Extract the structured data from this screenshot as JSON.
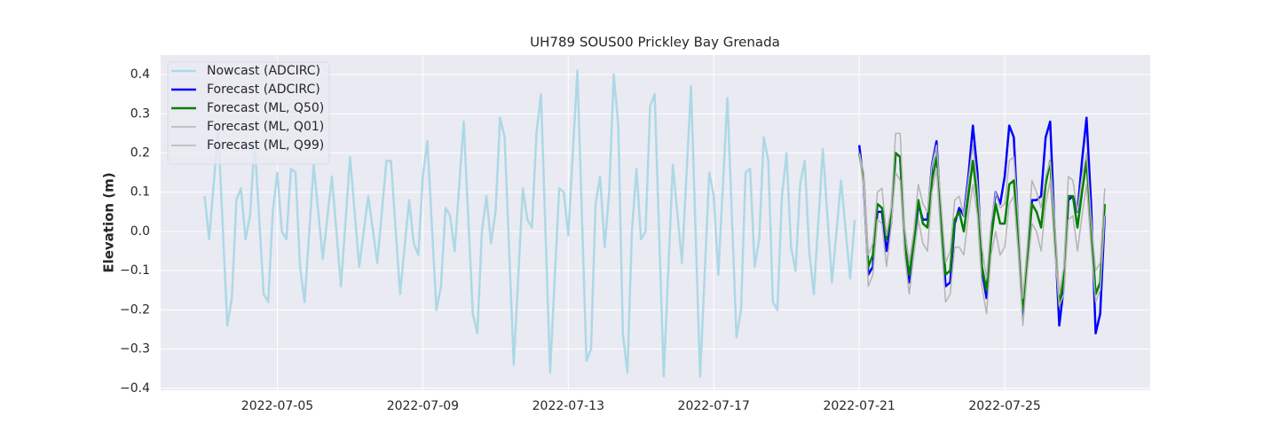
{
  "chart_data": {
    "type": "line",
    "title": "UH789 SOUS00 Prickley Bay Grenada",
    "ylabel": "Elevation (m)",
    "grid": true,
    "legend": "upper left",
    "xlim": [
      "2022-07-01 19:00",
      "2022-07-29 00:00"
    ],
    "xticks": [
      "2022-07-05",
      "2022-07-09",
      "2022-07-13",
      "2022-07-17",
      "2022-07-21",
      "2022-07-25"
    ],
    "ylim": [
      -0.405,
      0.45
    ],
    "yticks": [
      {
        "value": -0.4,
        "label": "−0.4"
      },
      {
        "value": -0.3,
        "label": "−0.3"
      },
      {
        "value": -0.2,
        "label": "−0.2"
      },
      {
        "value": -0.1,
        "label": "−0.1"
      },
      {
        "value": 0,
        "label": "0.0"
      },
      0.1,
      0.2,
      0.3,
      0.4
    ],
    "series": [
      {
        "name": "Nowcast (ADCIRC)",
        "color": "#add8e6",
        "width": 2.5,
        "x": [
          "2022-07-03 00:00",
          "2022-07-03 03:00",
          "2022-07-03 09:00",
          "2022-07-03 15:00",
          "2022-07-03 18:00",
          "2022-07-03 21:00",
          "2022-07-04 00:00",
          "2022-07-04 03:00",
          "2022-07-04 06:00",
          "2022-07-04 09:00",
          "2022-07-04 15:00",
          "2022-07-04 18:00",
          "2022-07-04 21:00",
          "2022-07-05 00:00",
          "2022-07-05 03:00",
          "2022-07-05 06:00",
          "2022-07-05 09:00",
          "2022-07-05 12:00",
          "2022-07-05 15:00",
          "2022-07-05 18:00",
          "2022-07-06 00:00",
          "2022-07-06 06:00",
          "2022-07-06 12:00",
          "2022-07-06 18:00",
          "2022-07-07 00:00",
          "2022-07-07 06:00",
          "2022-07-07 12:00",
          "2022-07-07 18:00",
          "2022-07-08 00:00",
          "2022-07-08 03:00",
          "2022-07-08 09:00",
          "2022-07-08 15:00",
          "2022-07-08 18:00",
          "2022-07-08 21:00",
          "2022-07-09 00:00",
          "2022-07-09 03:00",
          "2022-07-09 09:00",
          "2022-07-09 12:00",
          "2022-07-09 15:00",
          "2022-07-09 18:00",
          "2022-07-09 21:00",
          "2022-07-10 03:00",
          "2022-07-10 09:00",
          "2022-07-10 12:00",
          "2022-07-10 15:00",
          "2022-07-10 18:00",
          "2022-07-10 21:00",
          "2022-07-11 00:00",
          "2022-07-11 03:00",
          "2022-07-11 06:00",
          "2022-07-11 12:00",
          "2022-07-11 18:00",
          "2022-07-11 21:00",
          "2022-07-12 00:00",
          "2022-07-12 03:00",
          "2022-07-12 06:00",
          "2022-07-12 12:00",
          "2022-07-12 18:00",
          "2022-07-12 21:00",
          "2022-07-13 00:00",
          "2022-07-13 06:00",
          "2022-07-13 12:00",
          "2022-07-13 15:00",
          "2022-07-13 18:00",
          "2022-07-13 21:00",
          "2022-07-14 00:00",
          "2022-07-14 03:00",
          "2022-07-14 06:00",
          "2022-07-14 09:00",
          "2022-07-14 12:00",
          "2022-07-14 15:00",
          "2022-07-14 18:00",
          "2022-07-14 21:00",
          "2022-07-15 00:00",
          "2022-07-15 03:00",
          "2022-07-15 06:00",
          "2022-07-15 09:00",
          "2022-07-15 15:00",
          "2022-07-15 21:00",
          "2022-07-16 03:00",
          "2022-07-16 09:00",
          "2022-07-16 15:00",
          "2022-07-16 21:00",
          "2022-07-17 00:00",
          "2022-07-17 03:00",
          "2022-07-17 09:00",
          "2022-07-17 15:00",
          "2022-07-17 18:00",
          "2022-07-17 21:00",
          "2022-07-18 00:00",
          "2022-07-18 03:00",
          "2022-07-18 06:00",
          "2022-07-18 09:00",
          "2022-07-18 12:00",
          "2022-07-18 15:00",
          "2022-07-18 18:00",
          "2022-07-18 21:00",
          "2022-07-19 00:00",
          "2022-07-19 03:00",
          "2022-07-19 06:00",
          "2022-07-19 09:00",
          "2022-07-19 12:00",
          "2022-07-19 15:00",
          "2022-07-19 18:00",
          "2022-07-20 00:00",
          "2022-07-20 06:00",
          "2022-07-20 12:00",
          "2022-07-20 18:00",
          "2022-07-20 21:00"
        ],
        "values": [
          0.09,
          -0.02,
          0.26,
          -0.24,
          -0.17,
          0.08,
          0.11,
          -0.02,
          0.04,
          0.23,
          -0.16,
          -0.18,
          0.05,
          0.15,
          0.0,
          -0.02,
          0.16,
          0.15,
          -0.09,
          -0.18,
          0.17,
          -0.07,
          0.14,
          -0.14,
          0.19,
          -0.09,
          0.09,
          -0.08,
          0.18,
          0.18,
          -0.16,
          0.08,
          -0.03,
          -0.06,
          0.14,
          0.23,
          -0.2,
          -0.14,
          0.06,
          0.04,
          -0.05,
          0.28,
          -0.21,
          -0.26,
          0.0,
          0.09,
          -0.03,
          0.05,
          0.29,
          0.24,
          -0.34,
          0.11,
          0.03,
          0.01,
          0.25,
          0.35,
          -0.36,
          0.11,
          0.1,
          -0.01,
          0.41,
          -0.33,
          -0.3,
          0.07,
          0.14,
          -0.04,
          0.1,
          0.4,
          0.27,
          -0.26,
          -0.36,
          0.0,
          0.16,
          -0.02,
          0.0,
          0.32,
          0.35,
          -0.37,
          0.17,
          -0.08,
          0.37,
          -0.37,
          0.15,
          0.09,
          -0.11,
          0.34,
          -0.27,
          -0.2,
          0.15,
          0.16,
          -0.09,
          -0.02,
          0.24,
          0.18,
          -0.18,
          -0.2,
          0.09,
          0.2,
          -0.04,
          -0.1,
          0.12,
          0.18,
          -0.05,
          -0.16,
          0.21,
          -0.13,
          0.13,
          -0.12,
          0.03
        ]
      },
      {
        "name": "Forecast (ADCIRC)",
        "color": "#0000ff",
        "width": 2.5,
        "x": [
          "2022-07-21 00:00",
          "2022-07-21 03:00",
          "2022-07-21 06:00",
          "2022-07-21 09:00",
          "2022-07-21 12:00",
          "2022-07-21 15:00",
          "2022-07-21 18:00",
          "2022-07-21 21:00",
          "2022-07-22 00:00",
          "2022-07-22 03:00",
          "2022-07-22 06:00",
          "2022-07-22 09:00",
          "2022-07-22 12:00",
          "2022-07-22 15:00",
          "2022-07-22 18:00",
          "2022-07-22 21:00",
          "2022-07-23 00:00",
          "2022-07-23 03:00",
          "2022-07-23 06:00",
          "2022-07-23 09:00",
          "2022-07-23 12:00",
          "2022-07-23 15:00",
          "2022-07-23 18:00",
          "2022-07-23 21:00",
          "2022-07-24 00:00",
          "2022-07-24 03:00",
          "2022-07-24 06:00",
          "2022-07-24 09:00",
          "2022-07-24 12:00",
          "2022-07-24 15:00",
          "2022-07-24 18:00",
          "2022-07-24 21:00",
          "2022-07-25 00:00",
          "2022-07-25 03:00",
          "2022-07-25 06:00",
          "2022-07-25 09:00",
          "2022-07-25 12:00",
          "2022-07-25 15:00",
          "2022-07-25 18:00",
          "2022-07-25 21:00",
          "2022-07-26 00:00",
          "2022-07-26 03:00",
          "2022-07-26 06:00",
          "2022-07-26 09:00",
          "2022-07-26 12:00",
          "2022-07-26 15:00",
          "2022-07-26 18:00",
          "2022-07-26 21:00",
          "2022-07-27 00:00",
          "2022-07-27 03:00",
          "2022-07-27 06:00",
          "2022-07-27 09:00",
          "2022-07-27 12:00",
          "2022-07-27 15:00",
          "2022-07-27 18:00"
        ],
        "values": [
          0.22,
          0.12,
          -0.11,
          -0.09,
          0.05,
          0.05,
          -0.05,
          0.02,
          0.2,
          0.19,
          -0.04,
          -0.13,
          -0.05,
          0.07,
          0.03,
          0.03,
          0.17,
          0.23,
          0.03,
          -0.14,
          -0.13,
          0.02,
          0.06,
          0.04,
          0.14,
          0.27,
          0.15,
          -0.1,
          -0.17,
          0.0,
          0.1,
          0.07,
          0.14,
          0.27,
          0.24,
          0.0,
          -0.22,
          -0.06,
          0.08,
          0.08,
          0.09,
          0.24,
          0.28,
          0.0,
          -0.24,
          -0.14,
          0.08,
          0.09,
          0.05,
          0.18,
          0.29,
          0.07,
          -0.26,
          -0.21,
          0.04
        ]
      },
      {
        "name": "Forecast (ML, Q50)",
        "color": "#008000",
        "width": 2.5,
        "x": [
          "2022-07-21 00:00",
          "2022-07-21 03:00",
          "2022-07-21 06:00",
          "2022-07-21 09:00",
          "2022-07-21 12:00",
          "2022-07-21 15:00",
          "2022-07-21 18:00",
          "2022-07-21 21:00",
          "2022-07-22 00:00",
          "2022-07-22 03:00",
          "2022-07-22 06:00",
          "2022-07-22 09:00",
          "2022-07-22 12:00",
          "2022-07-22 15:00",
          "2022-07-22 18:00",
          "2022-07-22 21:00",
          "2022-07-23 00:00",
          "2022-07-23 03:00",
          "2022-07-23 06:00",
          "2022-07-23 09:00",
          "2022-07-23 12:00",
          "2022-07-23 15:00",
          "2022-07-23 18:00",
          "2022-07-23 21:00",
          "2022-07-24 00:00",
          "2022-07-24 03:00",
          "2022-07-24 06:00",
          "2022-07-24 09:00",
          "2022-07-24 12:00",
          "2022-07-24 15:00",
          "2022-07-24 18:00",
          "2022-07-24 21:00",
          "2022-07-25 00:00",
          "2022-07-25 03:00",
          "2022-07-25 06:00",
          "2022-07-25 09:00",
          "2022-07-25 12:00",
          "2022-07-25 15:00",
          "2022-07-25 18:00",
          "2022-07-25 21:00",
          "2022-07-26 00:00",
          "2022-07-26 03:00",
          "2022-07-26 06:00",
          "2022-07-26 09:00",
          "2022-07-26 12:00",
          "2022-07-26 15:00",
          "2022-07-26 18:00",
          "2022-07-26 21:00",
          "2022-07-27 00:00",
          "2022-07-27 03:00",
          "2022-07-27 06:00",
          "2022-07-27 09:00",
          "2022-07-27 12:00",
          "2022-07-27 15:00",
          "2022-07-27 18:00"
        ],
        "values": [
          0.2,
          0.13,
          -0.09,
          -0.06,
          0.07,
          0.06,
          -0.02,
          0.04,
          0.2,
          0.19,
          -0.03,
          -0.11,
          -0.03,
          0.08,
          0.02,
          0.01,
          0.13,
          0.19,
          0.03,
          -0.11,
          -0.1,
          0.03,
          0.05,
          0.0,
          0.09,
          0.18,
          0.08,
          -0.09,
          -0.15,
          -0.02,
          0.07,
          0.02,
          0.02,
          0.12,
          0.13,
          -0.01,
          -0.2,
          -0.06,
          0.07,
          0.05,
          0.01,
          0.12,
          0.18,
          -0.01,
          -0.19,
          -0.12,
          0.09,
          0.09,
          0.01,
          0.1,
          0.18,
          0.01,
          -0.16,
          -0.13,
          0.07
        ]
      },
      {
        "name": "Forecast (ML, Q01)",
        "color": "#b4b4b4",
        "width": 1.5,
        "x": [
          "2022-07-21 00:00",
          "2022-07-21 03:00",
          "2022-07-21 06:00",
          "2022-07-21 09:00",
          "2022-07-21 12:00",
          "2022-07-21 15:00",
          "2022-07-21 18:00",
          "2022-07-21 21:00",
          "2022-07-22 00:00",
          "2022-07-22 03:00",
          "2022-07-22 06:00",
          "2022-07-22 09:00",
          "2022-07-22 12:00",
          "2022-07-22 15:00",
          "2022-07-22 18:00",
          "2022-07-22 21:00",
          "2022-07-23 00:00",
          "2022-07-23 03:00",
          "2022-07-23 06:00",
          "2022-07-23 09:00",
          "2022-07-23 12:00",
          "2022-07-23 15:00",
          "2022-07-23 18:00",
          "2022-07-23 21:00",
          "2022-07-24 00:00",
          "2022-07-24 03:00",
          "2022-07-24 06:00",
          "2022-07-24 09:00",
          "2022-07-24 12:00",
          "2022-07-24 15:00",
          "2022-07-24 18:00",
          "2022-07-24 21:00",
          "2022-07-25 00:00",
          "2022-07-25 03:00",
          "2022-07-25 06:00",
          "2022-07-25 09:00",
          "2022-07-25 12:00",
          "2022-07-25 15:00",
          "2022-07-25 18:00",
          "2022-07-25 21:00",
          "2022-07-26 00:00",
          "2022-07-26 03:00",
          "2022-07-26 06:00",
          "2022-07-26 09:00",
          "2022-07-26 12:00",
          "2022-07-26 15:00",
          "2022-07-26 18:00",
          "2022-07-26 21:00",
          "2022-07-27 00:00",
          "2022-07-27 03:00",
          "2022-07-27 06:00",
          "2022-07-27 09:00",
          "2022-07-27 12:00",
          "2022-07-27 15:00",
          "2022-07-27 18:00"
        ],
        "values": [
          0.2,
          0.11,
          -0.14,
          -0.11,
          0.03,
          0.02,
          -0.09,
          0.01,
          0.15,
          0.13,
          -0.06,
          -0.16,
          -0.06,
          0.03,
          -0.03,
          -0.05,
          0.1,
          0.16,
          -0.02,
          -0.18,
          -0.16,
          -0.04,
          -0.04,
          -0.06,
          0.04,
          0.12,
          0.04,
          -0.14,
          -0.21,
          -0.06,
          0.0,
          -0.06,
          -0.04,
          0.07,
          0.09,
          -0.06,
          -0.24,
          -0.1,
          0.02,
          0.0,
          -0.05,
          0.07,
          0.13,
          -0.05,
          -0.19,
          -0.16,
          0.03,
          0.04,
          -0.05,
          0.04,
          0.12,
          -0.04,
          -0.18,
          -0.15,
          0.04
        ]
      },
      {
        "name": "Forecast (ML, Q99)",
        "color": "#b4b4b4",
        "width": 1.5,
        "x": [
          "2022-07-21 00:00",
          "2022-07-21 03:00",
          "2022-07-21 06:00",
          "2022-07-21 09:00",
          "2022-07-21 12:00",
          "2022-07-21 15:00",
          "2022-07-21 18:00",
          "2022-07-21 21:00",
          "2022-07-22 00:00",
          "2022-07-22 03:00",
          "2022-07-22 06:00",
          "2022-07-22 09:00",
          "2022-07-22 12:00",
          "2022-07-22 15:00",
          "2022-07-22 18:00",
          "2022-07-22 21:00",
          "2022-07-23 00:00",
          "2022-07-23 03:00",
          "2022-07-23 06:00",
          "2022-07-23 09:00",
          "2022-07-23 12:00",
          "2022-07-23 15:00",
          "2022-07-23 18:00",
          "2022-07-23 21:00",
          "2022-07-24 00:00",
          "2022-07-24 03:00",
          "2022-07-24 06:00",
          "2022-07-24 09:00",
          "2022-07-24 12:00",
          "2022-07-24 15:00",
          "2022-07-24 18:00",
          "2022-07-24 21:00",
          "2022-07-25 00:00",
          "2022-07-25 03:00",
          "2022-07-25 06:00",
          "2022-07-25 09:00",
          "2022-07-25 12:00",
          "2022-07-25 15:00",
          "2022-07-25 18:00",
          "2022-07-25 21:00",
          "2022-07-26 00:00",
          "2022-07-26 03:00",
          "2022-07-26 06:00",
          "2022-07-26 09:00",
          "2022-07-26 12:00",
          "2022-07-26 15:00",
          "2022-07-26 18:00",
          "2022-07-26 21:00",
          "2022-07-27 00:00",
          "2022-07-27 03:00",
          "2022-07-27 06:00",
          "2022-07-27 09:00",
          "2022-07-27 12:00",
          "2022-07-27 15:00",
          "2022-07-27 18:00"
        ],
        "values": [
          0.2,
          0.15,
          -0.06,
          -0.03,
          0.1,
          0.11,
          -0.01,
          0.06,
          0.25,
          0.25,
          0.01,
          -0.08,
          0.0,
          0.12,
          0.07,
          0.05,
          0.17,
          0.22,
          0.07,
          -0.08,
          -0.05,
          0.08,
          0.09,
          0.04,
          0.13,
          0.22,
          0.12,
          -0.04,
          -0.12,
          0.02,
          0.1,
          0.06,
          0.07,
          0.18,
          0.19,
          0.03,
          -0.17,
          -0.03,
          0.13,
          0.1,
          0.06,
          0.14,
          0.18,
          0.03,
          -0.16,
          -0.09,
          0.14,
          0.13,
          0.05,
          0.14,
          0.2,
          0.03,
          -0.1,
          -0.08,
          0.11
        ]
      }
    ]
  }
}
